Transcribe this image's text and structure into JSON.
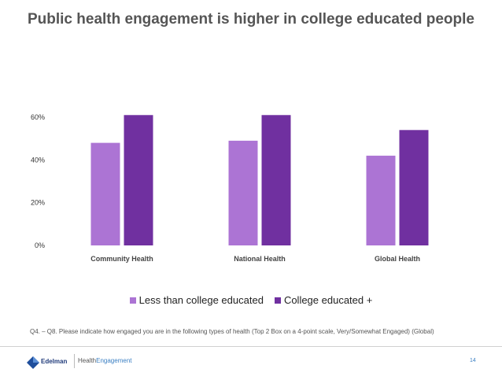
{
  "chart_data": {
    "type": "bar",
    "title": "Public health engagement is higher in college educated people",
    "categories": [
      "Community Health",
      "National Health",
      "Global Health"
    ],
    "series": [
      {
        "name": "Less than college educated",
        "values": [
          48,
          49,
          42
        ],
        "color": "#ac74d4"
      },
      {
        "name": "College educated +",
        "values": [
          61,
          61,
          54
        ],
        "color": "#7030a0"
      }
    ],
    "ylim": [
      0,
      60
    ],
    "yticks": [
      "0%",
      "20%",
      "40%",
      "60%"
    ],
    "grid": false,
    "legend_position": "bottom"
  },
  "footnote": "Q4. – Q8. Please indicate how engaged you are in the following types of health (Top 2 Box on a 4-point scale, Very/Somewhat Engaged) (Global)",
  "footer": {
    "logo_text": "Edelman",
    "brand_part1": "Health",
    "brand_part2": "Engagement",
    "page_number": "14"
  }
}
